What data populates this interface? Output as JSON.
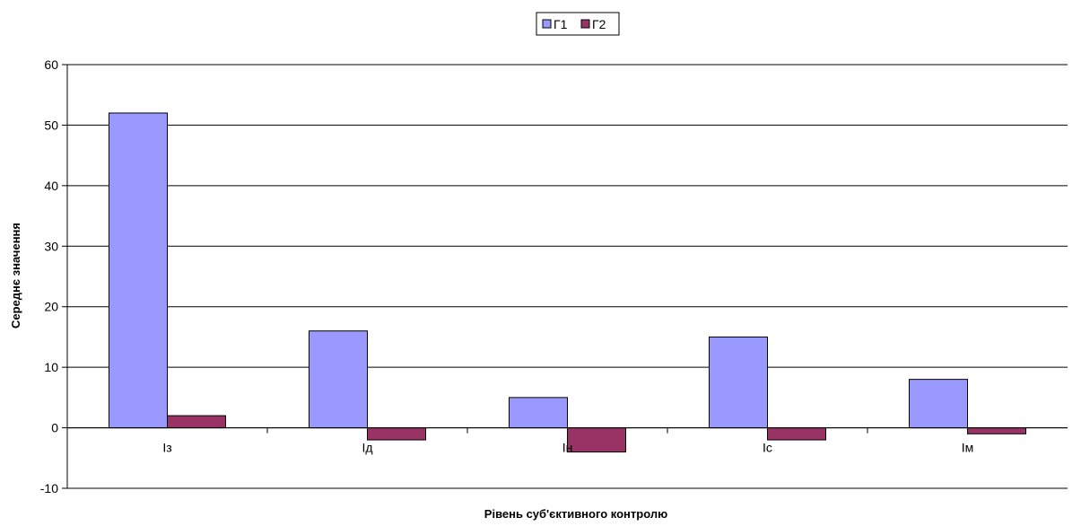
{
  "chart_data": {
    "type": "bar",
    "categories": [
      "Із",
      "Ід",
      "Ін",
      "Іс",
      "Ім"
    ],
    "series": [
      {
        "name": "Г1",
        "values": [
          52,
          16,
          5,
          15,
          8
        ],
        "color": "#9999ff"
      },
      {
        "name": "Г2",
        "values": [
          2,
          -2,
          -4,
          -2,
          -1
        ],
        "color": "#993366"
      }
    ],
    "xlabel": "Рівень суб'єктивного контролю",
    "ylabel": "Середнє значення",
    "ylim": [
      -10,
      60
    ],
    "yticks": [
      -10,
      0,
      10,
      20,
      30,
      40,
      50,
      60
    ],
    "grid": true,
    "legend": "top-center"
  }
}
